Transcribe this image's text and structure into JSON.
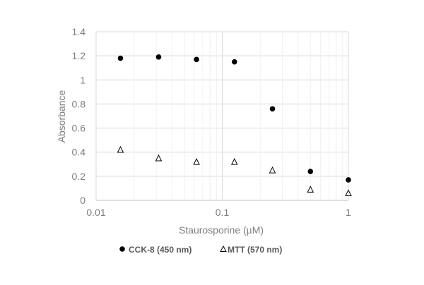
{
  "chart_data": {
    "type": "scatter",
    "xlabel": "Staurosporine (µM)",
    "ylabel": "Absorbance",
    "x_scale": "log",
    "xlim": [
      0.01,
      1
    ],
    "ylim": [
      0,
      1.4
    ],
    "x_ticks": [
      0.01,
      0.1,
      1
    ],
    "x_tick_labels": [
      "0.01",
      "0.1",
      "1"
    ],
    "y_ticks": [
      0,
      0.2,
      0.4,
      0.6,
      0.8,
      1.0,
      1.2,
      1.4
    ],
    "y_tick_labels": [
      "0",
      "0.2",
      "0.4",
      "0.6",
      "0.8",
      "1",
      "1.2",
      "1.4"
    ],
    "grid": true,
    "legend_position": "bottom",
    "series": [
      {
        "name": "CCK-8 (450 nm)",
        "marker": "filled-circle",
        "color": "#000000",
        "points": [
          {
            "x": 0.0156,
            "y": 1.18
          },
          {
            "x": 0.0313,
            "y": 1.19
          },
          {
            "x": 0.0625,
            "y": 1.17
          },
          {
            "x": 0.125,
            "y": 1.15
          },
          {
            "x": 0.25,
            "y": 0.76
          },
          {
            "x": 0.5,
            "y": 0.24
          },
          {
            "x": 1.0,
            "y": 0.17
          }
        ]
      },
      {
        "name": "MTT (570 nm)",
        "marker": "open-triangle",
        "color": "#000000",
        "points": [
          {
            "x": 0.0156,
            "y": 0.42
          },
          {
            "x": 0.0313,
            "y": 0.35
          },
          {
            "x": 0.0625,
            "y": 0.32
          },
          {
            "x": 0.125,
            "y": 0.32
          },
          {
            "x": 0.25,
            "y": 0.25
          },
          {
            "x": 0.5,
            "y": 0.09
          },
          {
            "x": 1.0,
            "y": 0.06
          }
        ]
      }
    ]
  }
}
